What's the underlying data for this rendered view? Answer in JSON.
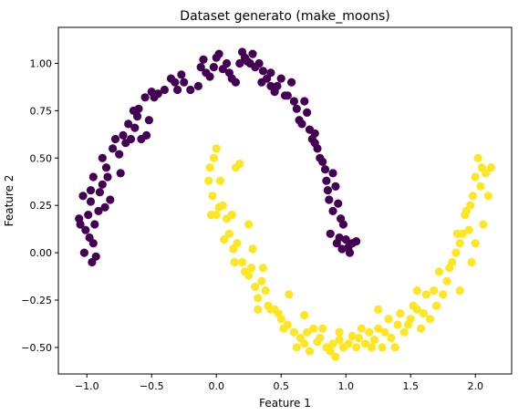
{
  "chart_data": {
    "type": "scatter",
    "title": "Dataset generato (make_moons)",
    "xlabel": "Feature 1",
    "ylabel": "Feature 2",
    "xlim": [
      -1.22,
      2.28
    ],
    "ylim": [
      -0.64,
      1.19
    ],
    "x_ticks": [
      -1.0,
      -0.5,
      0.0,
      0.5,
      1.0,
      1.5,
      2.0
    ],
    "x_tick_labels": [
      "−1.0",
      "−0.5",
      "0.0",
      "0.5",
      "1.0",
      "1.5",
      "2.0"
    ],
    "y_ticks": [
      -0.5,
      -0.25,
      0.0,
      0.25,
      0.5,
      0.75,
      1.0
    ],
    "y_tick_labels": [
      "−0.50",
      "−0.25",
      "0.00",
      "0.25",
      "0.50",
      "0.75",
      "1.00"
    ],
    "grid": false,
    "legend": "none",
    "series": [
      {
        "color": "#440154",
        "points": [
          [
            -1.05,
            0.15
          ],
          [
            -1.01,
            0.12
          ],
          [
            -0.98,
            0.08
          ],
          [
            -0.95,
            0.05
          ],
          [
            -0.96,
            -0.05
          ],
          [
            -1.02,
            0.0
          ],
          [
            -0.93,
            -0.02
          ],
          [
            -1.03,
            0.3
          ],
          [
            -0.97,
            0.27
          ],
          [
            -0.99,
            0.2
          ],
          [
            -0.94,
            0.15
          ],
          [
            -0.91,
            0.22
          ],
          [
            -0.9,
            0.32
          ],
          [
            -0.95,
            0.4
          ],
          [
            -0.88,
            0.36
          ],
          [
            -0.85,
            0.45
          ],
          [
            -0.88,
            0.5
          ],
          [
            -0.82,
            0.28
          ],
          [
            -0.8,
            0.55
          ],
          [
            -0.78,
            0.6
          ],
          [
            -0.75,
            0.52
          ],
          [
            -0.72,
            0.62
          ],
          [
            -0.7,
            0.58
          ],
          [
            -0.66,
            0.6
          ],
          [
            -0.68,
            0.68
          ],
          [
            -0.64,
            0.75
          ],
          [
            -0.6,
            0.76
          ],
          [
            -0.61,
            0.72
          ],
          [
            -0.58,
            0.6
          ],
          [
            -0.54,
            0.62
          ],
          [
            -0.55,
            0.82
          ],
          [
            -0.5,
            0.85
          ],
          [
            -0.48,
            0.82
          ],
          [
            -0.45,
            0.84
          ],
          [
            -0.4,
            0.86
          ],
          [
            -0.35,
            0.92
          ],
          [
            -0.32,
            0.9
          ],
          [
            -0.27,
            0.94
          ],
          [
            -0.25,
            0.9
          ],
          [
            -0.2,
            0.86
          ],
          [
            -0.14,
            0.88
          ],
          [
            -0.12,
            0.98
          ],
          [
            -0.1,
            1.02
          ],
          [
            -0.08,
            0.95
          ],
          [
            -0.05,
            0.93
          ],
          [
            -0.02,
            0.98
          ],
          [
            0.0,
            1.03
          ],
          [
            0.05,
            0.97
          ],
          [
            0.08,
            1.0
          ],
          [
            0.1,
            0.95
          ],
          [
            0.12,
            0.92
          ],
          [
            0.15,
            0.9
          ],
          [
            0.18,
            1.0
          ],
          [
            0.2,
            1.06
          ],
          [
            0.22,
            1.03
          ],
          [
            0.24,
            1.01
          ],
          [
            0.26,
            1.0
          ],
          [
            0.28,
            1.05
          ],
          [
            0.3,
            0.98
          ],
          [
            0.35,
            0.9
          ],
          [
            0.36,
            0.96
          ],
          [
            0.39,
            0.92
          ],
          [
            0.42,
            0.88
          ],
          [
            0.45,
            0.85
          ],
          [
            0.47,
            0.88
          ],
          [
            0.5,
            0.92
          ],
          [
            0.53,
            0.83
          ],
          [
            0.55,
            0.83
          ],
          [
            0.6,
            0.8
          ],
          [
            0.62,
            0.76
          ],
          [
            0.64,
            0.7
          ],
          [
            0.66,
            0.68
          ],
          [
            0.7,
            0.74
          ],
          [
            0.72,
            0.65
          ],
          [
            0.74,
            0.6
          ],
          [
            0.76,
            0.63
          ],
          [
            0.78,
            0.55
          ],
          [
            0.8,
            0.5
          ],
          [
            0.82,
            0.48
          ],
          [
            0.84,
            0.44
          ],
          [
            0.85,
            0.38
          ],
          [
            0.86,
            0.33
          ],
          [
            0.87,
            0.28
          ],
          [
            0.9,
            0.42
          ],
          [
            0.92,
            0.35
          ],
          [
            0.94,
            0.26
          ],
          [
            0.96,
            0.18
          ],
          [
            0.95,
            0.08
          ],
          [
            0.93,
            0.05
          ],
          [
            0.97,
            0.02
          ],
          [
            1.0,
            0.07
          ],
          [
            1.02,
            0.03
          ],
          [
            1.05,
            0.05
          ],
          [
            1.03,
            0.0
          ],
          [
            1.08,
            0.06
          ],
          [
            0.98,
            0.15
          ],
          [
            0.9,
            0.22
          ],
          [
            0.88,
            0.1
          ],
          [
            0.76,
            0.58
          ],
          [
            0.68,
            0.8
          ],
          [
            0.58,
            0.9
          ],
          [
            0.42,
            0.95
          ],
          [
            0.33,
            1.0
          ],
          [
            0.02,
            1.05
          ],
          [
            -0.3,
            0.86
          ],
          [
            -0.52,
            0.7
          ],
          [
            -0.63,
            0.66
          ],
          [
            -0.74,
            0.42
          ],
          [
            -0.86,
            0.24
          ],
          [
            -1.06,
            0.18
          ],
          [
            -0.97,
            0.33
          ],
          [
            -0.84,
            0.4
          ]
        ]
      },
      {
        "color": "#FDE725",
        "points": [
          [
            -0.02,
            0.5
          ],
          [
            0.0,
            0.55
          ],
          [
            -0.05,
            0.45
          ],
          [
            -0.03,
            0.3
          ],
          [
            0.0,
            0.2
          ],
          [
            0.02,
            0.24
          ],
          [
            -0.04,
            0.2
          ],
          [
            0.05,
            0.25
          ],
          [
            0.08,
            0.18
          ],
          [
            0.1,
            0.1
          ],
          [
            0.12,
            0.2
          ],
          [
            0.15,
            0.45
          ],
          [
            0.18,
            0.47
          ],
          [
            0.13,
            0.02
          ],
          [
            0.14,
            -0.05
          ],
          [
            0.16,
            0.05
          ],
          [
            0.2,
            -0.05
          ],
          [
            0.22,
            -0.1
          ],
          [
            0.25,
            -0.12
          ],
          [
            0.27,
            -0.08
          ],
          [
            0.3,
            -0.18
          ],
          [
            0.32,
            -0.24
          ],
          [
            0.35,
            -0.15
          ],
          [
            0.38,
            -0.2
          ],
          [
            0.4,
            -0.28
          ],
          [
            0.42,
            -0.3
          ],
          [
            0.45,
            -0.3
          ],
          [
            0.48,
            -0.32
          ],
          [
            0.5,
            -0.35
          ],
          [
            0.52,
            -0.4
          ],
          [
            0.55,
            -0.38
          ],
          [
            0.6,
            -0.42
          ],
          [
            0.62,
            -0.5
          ],
          [
            0.65,
            -0.45
          ],
          [
            0.68,
            -0.48
          ],
          [
            0.7,
            -0.42
          ],
          [
            0.72,
            -0.52
          ],
          [
            0.75,
            -0.4
          ],
          [
            0.78,
            -0.47
          ],
          [
            0.8,
            -0.45
          ],
          [
            0.82,
            -0.4
          ],
          [
            0.85,
            -0.5
          ],
          [
            0.88,
            -0.52
          ],
          [
            0.9,
            -0.48
          ],
          [
            0.92,
            -0.55
          ],
          [
            0.95,
            -0.46
          ],
          [
            0.98,
            -0.5
          ],
          [
            1.02,
            -0.48
          ],
          [
            1.05,
            -0.44
          ],
          [
            1.08,
            -0.5
          ],
          [
            1.1,
            -0.45
          ],
          [
            1.12,
            -0.4
          ],
          [
            1.15,
            -0.48
          ],
          [
            1.18,
            -0.42
          ],
          [
            1.2,
            -0.5
          ],
          [
            1.22,
            -0.46
          ],
          [
            1.25,
            -0.4
          ],
          [
            1.28,
            -0.5
          ],
          [
            1.3,
            -0.42
          ],
          [
            1.33,
            -0.35
          ],
          [
            1.35,
            -0.45
          ],
          [
            1.38,
            -0.5
          ],
          [
            1.4,
            -0.38
          ],
          [
            1.42,
            -0.32
          ],
          [
            1.45,
            -0.42
          ],
          [
            1.48,
            -0.38
          ],
          [
            1.5,
            -0.35
          ],
          [
            1.52,
            -0.28
          ],
          [
            1.55,
            -0.3
          ],
          [
            1.58,
            -0.4
          ],
          [
            1.6,
            -0.32
          ],
          [
            1.62,
            -0.22
          ],
          [
            1.65,
            -0.35
          ],
          [
            1.68,
            -0.2
          ],
          [
            1.7,
            -0.28
          ],
          [
            1.72,
            -0.1
          ],
          [
            1.75,
            -0.22
          ],
          [
            1.78,
            -0.15
          ],
          [
            1.8,
            -0.08
          ],
          [
            1.82,
            -0.05
          ],
          [
            1.85,
            0.0
          ],
          [
            1.88,
            0.05
          ],
          [
            1.9,
            0.1
          ],
          [
            1.88,
            -0.2
          ],
          [
            1.92,
            0.2
          ],
          [
            1.95,
            0.12
          ],
          [
            1.96,
            0.25
          ],
          [
            1.98,
            0.3
          ],
          [
            2.0,
            0.4
          ],
          [
            2.02,
            0.5
          ],
          [
            2.05,
            0.45
          ],
          [
            2.04,
            0.35
          ],
          [
            2.08,
            0.42
          ],
          [
            2.1,
            0.3
          ],
          [
            2.12,
            0.45
          ],
          [
            2.0,
            0.05
          ],
          [
            1.97,
            -0.05
          ],
          [
            1.93,
            0.22
          ],
          [
            2.06,
            0.15
          ],
          [
            1.86,
            0.1
          ],
          [
            1.55,
            -0.2
          ],
          [
            1.25,
            -0.3
          ],
          [
            0.68,
            -0.33
          ],
          [
            0.56,
            -0.22
          ],
          [
            0.36,
            -0.08
          ],
          [
            0.28,
            0.02
          ],
          [
            0.25,
            0.15
          ],
          [
            0.06,
            0.07
          ],
          [
            0.03,
            0.38
          ],
          [
            -0.06,
            0.38
          ],
          [
            0.32,
            -0.3
          ],
          [
            0.95,
            -0.42
          ]
        ]
      }
    ]
  }
}
